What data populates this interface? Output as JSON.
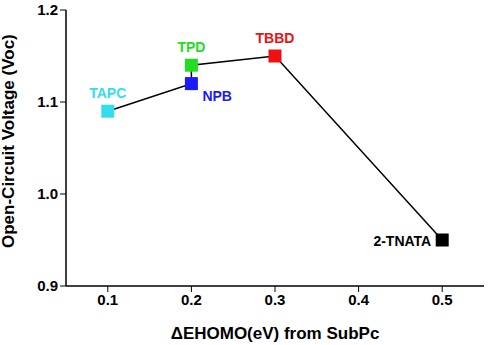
{
  "chart_data": {
    "type": "line",
    "x_label": "ΔEHOMO(eV) from SubPc",
    "y_label": "Open-Circuit Voltage (Voc)",
    "x": [
      0.1,
      0.2,
      0.2,
      0.3,
      0.5
    ],
    "values": [
      1.09,
      1.12,
      1.14,
      1.15,
      0.95
    ],
    "labels": [
      "TAPC",
      "NPB",
      "TPD",
      "TBBD",
      "2-TNATA"
    ],
    "colors": [
      "#33ddee",
      "#1a1aff",
      "#22dd22",
      "#ee1111",
      "#000000"
    ],
    "color": "#000000",
    "marker": "square",
    "xlim": [
      0.05,
      0.55
    ],
    "xticks": [
      0.1,
      0.2,
      0.3,
      0.4,
      0.5
    ],
    "ylim": [
      0.9,
      1.2
    ],
    "yticks": [
      0.9,
      {
        "value": 1,
        "label": "1.0"
      },
      1.1,
      1.2
    ]
  }
}
